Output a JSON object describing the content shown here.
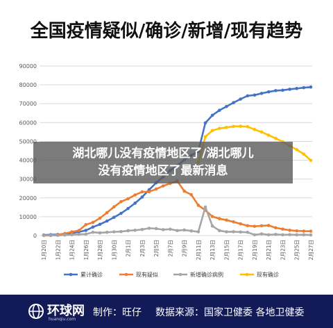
{
  "title": "全国疫情疑似/确诊/新增/现有趋势",
  "banner": {
    "line1": "湖北哪儿没有疫情地区了/湖北哪儿",
    "line2": "没有疫情地区了最新消息"
  },
  "footer": {
    "logo_name": "环球网",
    "logo_sub": "huanqiu.com",
    "credit": "制作：旺仔",
    "source": "数据来源：国家卫健委 各地卫健委"
  },
  "colors": {
    "confirmed": "#4472c4",
    "suspected": "#ed7d31",
    "new": "#a5a5a5",
    "current": "#ffc000",
    "footer_bg": "#121a57"
  },
  "chart_data": {
    "type": "line",
    "title": "全国疫情疑似/确诊/新增/现有趋势",
    "xlabel": "",
    "ylabel": "",
    "ylim": [
      0,
      90000
    ],
    "yticks": [
      0,
      10000,
      20000,
      30000,
      40000,
      50000,
      60000,
      70000,
      80000,
      90000
    ],
    "grid": true,
    "legend_position": "bottom",
    "x": [
      "1月20日",
      "1月21日",
      "1月22日",
      "1月23日",
      "1月24日",
      "1月25日",
      "1月26日",
      "1月27日",
      "1月28日",
      "1月29日",
      "1月30日",
      "1月31日",
      "2月1日",
      "2月2日",
      "2月3日",
      "2月4日",
      "2月5日",
      "2月6日",
      "2月7日",
      "2月8日",
      "2月9日",
      "2月10日",
      "2月11日",
      "2月12日",
      "2月13日",
      "2月14日",
      "2月15日",
      "2月16日",
      "2月17日",
      "2月18日",
      "2月19日",
      "2月20日",
      "2月21日",
      "2月22日",
      "2月23日",
      "2月24日",
      "2月25日",
      "2月26日",
      "2月27日"
    ],
    "xtick_labels": [
      "1月20日",
      "1月22日",
      "1月24日",
      "1月26日",
      "1月28日",
      "1月30日",
      "2月1日",
      "2月3日",
      "2月5日",
      "2月7日",
      "2月9日",
      "2月11日",
      "2月13日",
      "2月15日",
      "2月17日",
      "2月19日",
      "2月21日",
      "2月23日",
      "2月25日",
      "2月27日"
    ],
    "series": [
      {
        "name": "累计确诊",
        "color": "#4472c4",
        "values": [
          291,
          440,
          571,
          830,
          1287,
          1975,
          2744,
          4515,
          5974,
          7711,
          9692,
          11791,
          14380,
          17205,
          20438,
          24324,
          28018,
          31161,
          34546,
          37198,
          40171,
          42638,
          44653,
          59804,
          63851,
          66492,
          68500,
          70548,
          72436,
          74185,
          74576,
          75465,
          76288,
          76936,
          77150,
          77658,
          78064,
          78497,
          78824
        ]
      },
      {
        "name": "现有疑似",
        "color": "#ed7d31",
        "values": [
          54,
          37,
          393,
          1072,
          1965,
          2684,
          5794,
          6973,
          9239,
          12167,
          15238,
          17988,
          19544,
          21558,
          23214,
          23260,
          24702,
          26359,
          27657,
          28942,
          23589,
          21675,
          16067,
          13435,
          10109,
          8969,
          8228,
          7264,
          6242,
          5248,
          4922,
          5206,
          5365,
          4148,
          3434,
          2824,
          2491,
          2358,
          2308
        ]
      },
      {
        "name": "新增确诊病例",
        "color": "#a5a5a5",
        "values": [
          77,
          149,
          131,
          259,
          444,
          688,
          769,
          1771,
          1459,
          1737,
          1981,
          2099,
          2590,
          2829,
          3235,
          3887,
          3694,
          3143,
          3385,
          2652,
          2973,
          2467,
          2015,
          15152,
          5090,
          2641,
          2009,
          2048,
          1886,
          1749,
          394,
          889,
          397,
          648,
          409,
          508,
          406,
          433,
          327
        ]
      },
      {
        "name": "现有确诊",
        "color": "#ffc000",
        "values": [
          null,
          null,
          null,
          null,
          null,
          null,
          null,
          null,
          null,
          null,
          null,
          null,
          null,
          null,
          null,
          null,
          null,
          null,
          null,
          null,
          null,
          null,
          38800,
          52526,
          55748,
          56873,
          57416,
          57934,
          58016,
          57805,
          56303,
          54965,
          53284,
          51606,
          49824,
          47672,
          45604,
          43258,
          39919
        ]
      }
    ]
  }
}
